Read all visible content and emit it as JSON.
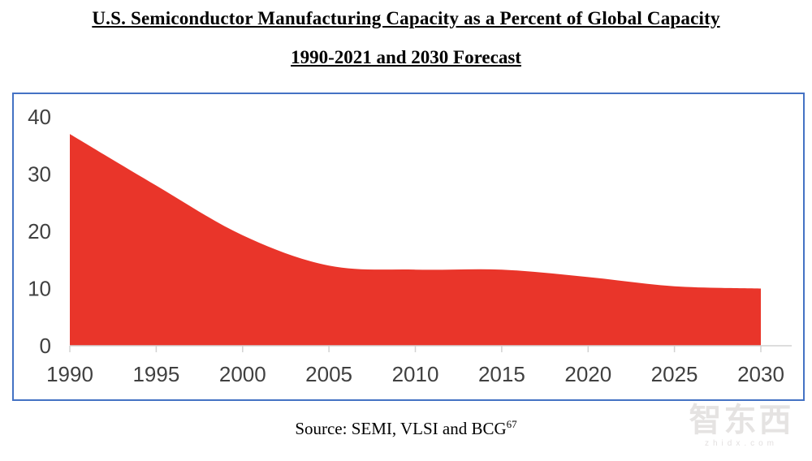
{
  "page": {
    "title": "U.S. Semiconductor Manufacturing Capacity as a Percent of Global Capacity",
    "subtitle": "1990-2021 and 2030 Forecast",
    "source_prefix": "Source: SEMI, VLSI and BCG",
    "source_superscript": "67",
    "watermark": {
      "logo_text": "智东西",
      "domain": "zhidx.com"
    }
  },
  "colors": {
    "area_red": "#E9352A",
    "frame_border_blue": "#4472C4",
    "axis_text": "#404040",
    "axis_line": "#D2D2D2"
  },
  "chart_data": {
    "type": "area",
    "title": "U.S. Semiconductor Manufacturing Capacity as a Percent of Global Capacity",
    "subtitle": "1990-2021 and 2030 Forecast",
    "x": [
      1990,
      1995,
      2000,
      2005,
      2010,
      2015,
      2020,
      2025,
      2030
    ],
    "values": [
      37,
      28,
      19.3,
      14,
      13.3,
      13.3,
      12,
      10.4,
      10
    ],
    "x_ticks": [
      1990,
      1995,
      2000,
      2005,
      2010,
      2015,
      2020,
      2025,
      2030
    ],
    "y_ticks": [
      0,
      10,
      20,
      30,
      40
    ],
    "xlim": [
      1990,
      2030
    ],
    "ylim": [
      0,
      40
    ],
    "xlabel": "",
    "ylabel": "",
    "grid": false,
    "legend": "none",
    "curve": "smooth"
  }
}
